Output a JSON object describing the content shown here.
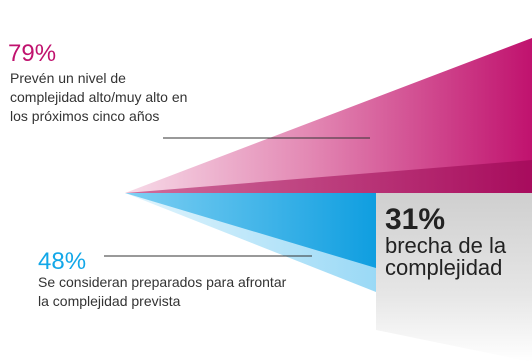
{
  "chart_data": {
    "type": "area",
    "series": [
      {
        "value": 79,
        "value_label": "79%",
        "description": "Prevén un nivel de complejidad alto/muy alto en los próximos cinco años",
        "color": "#c0126e"
      },
      {
        "value": 48,
        "value_label": "48%",
        "description": "Se consideran preparados para afrontar la complejidad prevista",
        "color": "#12a7e8"
      }
    ],
    "gap": {
      "value": 31,
      "value_label": "31%",
      "label": "brecha de la complejidad",
      "color": "#d0d0d0"
    }
  }
}
